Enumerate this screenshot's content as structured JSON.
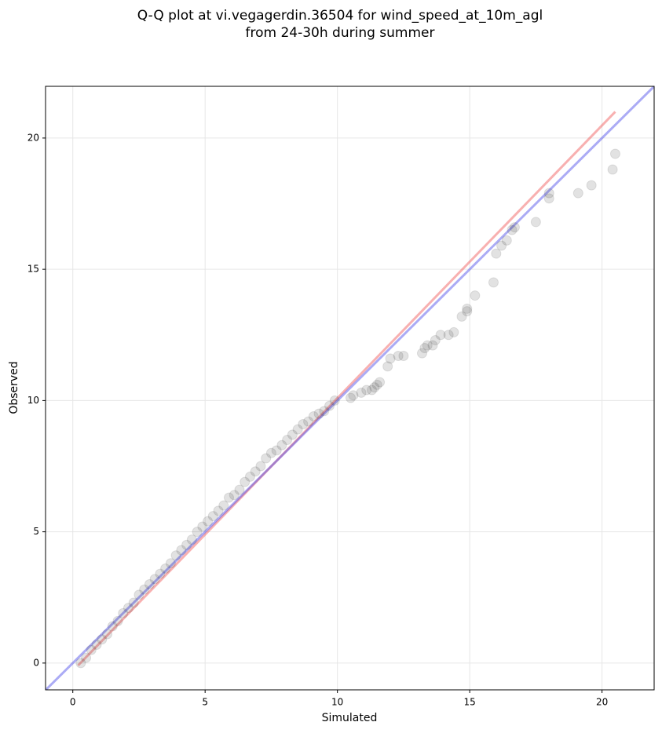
{
  "chart_data": {
    "type": "scatter",
    "title": [
      "Q-Q plot at vi.vegagerdin.36504 for wind_speed_at_10m_agl",
      "from 24-30h during summer"
    ],
    "xlabel": "Simulated",
    "ylabel": "Observed",
    "xlim": [
      -1.03,
      21.97
    ],
    "ylim": [
      -1.02,
      21.97
    ],
    "xticks": [
      0,
      5,
      10,
      15,
      20
    ],
    "yticks": [
      0,
      5,
      10,
      15,
      20
    ],
    "grid": true,
    "point_color": "#333333",
    "x": [
      0.3,
      0.5,
      0.7,
      0.9,
      1.1,
      1.3,
      1.5,
      1.7,
      1.9,
      2.1,
      2.3,
      2.5,
      2.7,
      2.9,
      3.1,
      3.3,
      3.5,
      3.7,
      3.9,
      4.1,
      4.3,
      4.5,
      4.7,
      4.9,
      5.1,
      5.3,
      5.5,
      5.7,
      5.9,
      6.1,
      6.3,
      6.5,
      6.7,
      6.9,
      7.1,
      7.3,
      7.5,
      7.7,
      7.9,
      8.1,
      8.3,
      8.5,
      8.7,
      8.9,
      9.1,
      9.3,
      9.5,
      9.7,
      9.9,
      10.5,
      10.6,
      10.9,
      11.1,
      11.3,
      11.4,
      11.5,
      11.6,
      11.9,
      12.0,
      12.3,
      12.5,
      13.2,
      13.3,
      13.4,
      13.6,
      13.7,
      13.9,
      14.2,
      14.4,
      14.7,
      14.9,
      14.9,
      15.2,
      15.9,
      16.0,
      16.2,
      16.4,
      16.6,
      16.7,
      17.5,
      18.0,
      18.0,
      19.1,
      19.6,
      20.4,
      20.5
    ],
    "y": [
      0.0,
      0.2,
      0.5,
      0.7,
      0.9,
      1.1,
      1.4,
      1.6,
      1.9,
      2.1,
      2.3,
      2.6,
      2.8,
      3.0,
      3.2,
      3.4,
      3.6,
      3.8,
      4.1,
      4.3,
      4.5,
      4.7,
      5.0,
      5.2,
      5.4,
      5.6,
      5.8,
      6.0,
      6.3,
      6.4,
      6.6,
      6.9,
      7.1,
      7.3,
      7.5,
      7.8,
      8.0,
      8.1,
      8.3,
      8.5,
      8.7,
      8.9,
      9.1,
      9.2,
      9.4,
      9.5,
      9.6,
      9.8,
      10.0,
      10.1,
      10.2,
      10.3,
      10.4,
      10.4,
      10.5,
      10.6,
      10.7,
      11.3,
      11.6,
      11.7,
      11.7,
      11.8,
      12.0,
      12.1,
      12.1,
      12.3,
      12.5,
      12.5,
      12.6,
      13.2,
      13.4,
      13.5,
      14.0,
      14.5,
      15.6,
      15.9,
      16.1,
      16.5,
      16.6,
      16.8,
      17.7,
      17.9,
      17.9,
      18.2,
      18.8,
      19.4
    ],
    "lines": [
      {
        "color": "#ef5050",
        "x": [
          0.2,
          20.5
        ],
        "y": [
          -0.09,
          21.0
        ]
      },
      {
        "color": "#4444e8",
        "x": [
          -1.03,
          21.97
        ],
        "y": [
          -1.03,
          21.97
        ]
      }
    ]
  }
}
